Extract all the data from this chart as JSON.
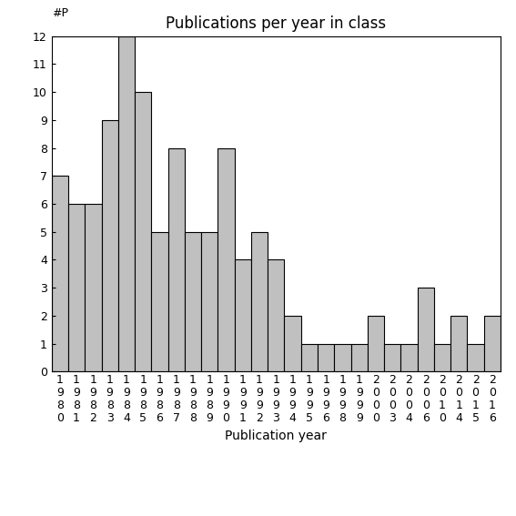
{
  "categories": [
    "1980",
    "1981",
    "1982",
    "1983",
    "1984",
    "1985",
    "1986",
    "1987",
    "1988",
    "1989",
    "1990",
    "1991",
    "1992",
    "1993",
    "1994",
    "1995",
    "1996",
    "1998",
    "1999",
    "2000",
    "2003",
    "2004",
    "2006",
    "2010",
    "2014",
    "2015",
    "2016"
  ],
  "values": [
    7,
    6,
    6,
    9,
    12,
    10,
    5,
    8,
    5,
    5,
    8,
    4,
    5,
    4,
    2,
    1,
    1,
    1,
    1,
    2,
    1,
    1,
    3,
    1,
    2,
    1,
    2
  ],
  "bar_color": "#c0c0c0",
  "bar_edge_color": "#000000",
  "title": "Publications per year in class",
  "xlabel": "Publication year",
  "ylabel_text": "#P",
  "ylim": [
    0,
    12
  ],
  "yticks": [
    0,
    1,
    2,
    3,
    4,
    5,
    6,
    7,
    8,
    9,
    10,
    11,
    12
  ],
  "background_color": "#ffffff",
  "title_fontsize": 12,
  "label_fontsize": 10,
  "tick_fontsize": 9
}
